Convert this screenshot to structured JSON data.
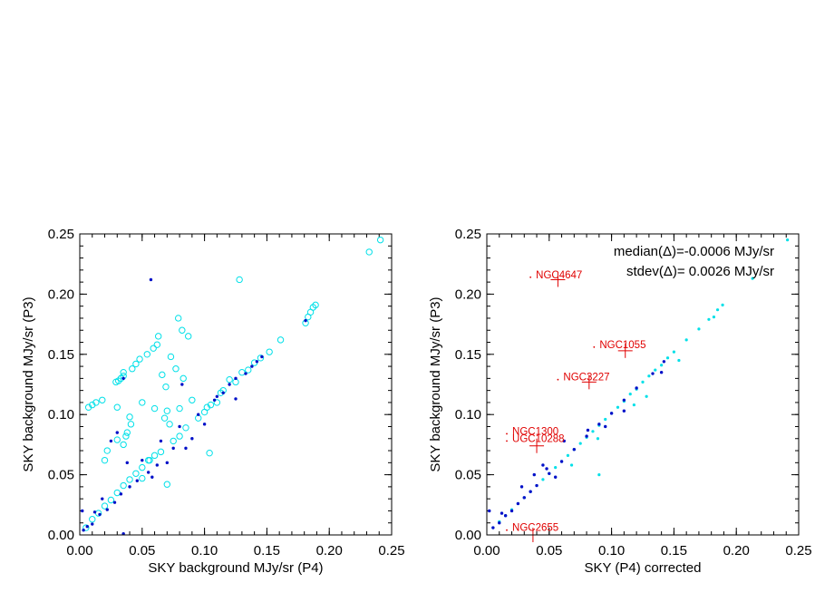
{
  "chart_data": [
    {
      "type": "scatter",
      "xlabel": "SKY background MJy/sr (P4)",
      "ylabel": "SKY background MJy/sr (P3)",
      "xlim": [
        0,
        0.25
      ],
      "ylim": [
        0,
        0.25
      ],
      "xticks": [
        "0.00",
        "0.05",
        "0.10",
        "0.15",
        "0.20",
        "0.25"
      ],
      "yticks": [
        "0.00",
        "0.05",
        "0.10",
        "0.15",
        "0.20",
        "0.25"
      ],
      "colors": {
        "open_circles": "#00e0e8",
        "dots": "#0010c8"
      },
      "series": [
        {
          "marker": "open-circle",
          "points": [
            [
              0.241,
              0.245
            ],
            [
              0.232,
              0.235
            ],
            [
              0.128,
              0.212
            ],
            [
              0.189,
              0.191
            ],
            [
              0.187,
              0.189
            ],
            [
              0.185,
              0.185
            ],
            [
              0.183,
              0.181
            ],
            [
              0.181,
              0.176
            ],
            [
              0.161,
              0.162
            ],
            [
              0.152,
              0.152
            ],
            [
              0.145,
              0.147
            ],
            [
              0.079,
              0.18
            ],
            [
              0.082,
              0.17
            ],
            [
              0.087,
              0.165
            ],
            [
              0.063,
              0.165
            ],
            [
              0.062,
              0.158
            ],
            [
              0.059,
              0.155
            ],
            [
              0.054,
              0.15
            ],
            [
              0.048,
              0.146
            ],
            [
              0.045,
              0.142
            ],
            [
              0.042,
              0.138
            ],
            [
              0.035,
              0.132
            ],
            [
              0.033,
              0.13
            ],
            [
              0.031,
              0.128
            ],
            [
              0.029,
              0.127
            ],
            [
              0.073,
              0.148
            ],
            [
              0.077,
              0.138
            ],
            [
              0.066,
              0.133
            ],
            [
              0.083,
              0.13
            ],
            [
              0.069,
              0.123
            ],
            [
              0.035,
              0.135
            ],
            [
              0.018,
              0.112
            ],
            [
              0.013,
              0.11
            ],
            [
              0.01,
              0.108
            ],
            [
              0.007,
              0.106
            ],
            [
              0.03,
              0.106
            ],
            [
              0.04,
              0.098
            ],
            [
              0.05,
              0.11
            ],
            [
              0.06,
              0.105
            ],
            [
              0.07,
              0.103
            ],
            [
              0.08,
              0.105
            ],
            [
              0.068,
              0.097
            ],
            [
              0.072,
              0.092
            ],
            [
              0.041,
              0.092
            ],
            [
              0.038,
              0.085
            ],
            [
              0.037,
              0.082
            ],
            [
              0.035,
              0.075
            ],
            [
              0.03,
              0.079
            ],
            [
              0.022,
              0.07
            ],
            [
              0.02,
              0.062
            ],
            [
              0.104,
              0.068
            ],
            [
              0.07,
              0.042
            ],
            [
              0.05,
              0.047
            ],
            [
              0.056,
              0.062
            ],
            [
              0.09,
              0.112
            ],
            [
              0.102,
              0.106
            ],
            [
              0.113,
              0.118
            ],
            [
              0.12,
              0.129
            ],
            [
              0.13,
              0.135
            ],
            [
              0.14,
              0.143
            ],
            [
              0.11,
              0.11
            ],
            [
              0.095,
              0.097
            ],
            [
              0.08,
              0.082
            ],
            [
              0.065,
              0.069
            ],
            [
              0.05,
              0.056
            ],
            [
              0.04,
              0.046
            ],
            [
              0.03,
              0.035
            ],
            [
              0.02,
              0.024
            ],
            [
              0.01,
              0.013
            ],
            [
              0.005,
              0.006
            ],
            [
              0.015,
              0.018
            ],
            [
              0.025,
              0.029
            ],
            [
              0.035,
              0.041
            ],
            [
              0.045,
              0.051
            ],
            [
              0.055,
              0.062
            ],
            [
              0.06,
              0.066
            ],
            [
              0.075,
              0.078
            ],
            [
              0.085,
              0.089
            ],
            [
              0.1,
              0.102
            ],
            [
              0.105,
              0.108
            ],
            [
              0.115,
              0.12
            ],
            [
              0.125,
              0.127
            ],
            [
              0.135,
              0.137
            ]
          ]
        },
        {
          "marker": "dot",
          "points": [
            [
              0.057,
              0.212
            ],
            [
              0.035,
              0.13
            ],
            [
              0.082,
              0.125
            ],
            [
              0.11,
              0.115
            ],
            [
              0.012,
              0.019
            ],
            [
              0.002,
              0.02
            ],
            [
              0.035,
              0.001
            ],
            [
              0.03,
              0.085
            ],
            [
              0.025,
              0.078
            ],
            [
              0.065,
              0.078
            ],
            [
              0.12,
              0.125
            ],
            [
              0.133,
              0.134
            ],
            [
              0.142,
              0.144
            ],
            [
              0.181,
              0.178
            ],
            [
              0.1,
              0.092
            ],
            [
              0.09,
              0.08
            ],
            [
              0.075,
              0.072
            ],
            [
              0.062,
              0.058
            ],
            [
              0.055,
              0.052
            ],
            [
              0.046,
              0.045
            ],
            [
              0.04,
              0.04
            ],
            [
              0.033,
              0.034
            ],
            [
              0.028,
              0.027
            ],
            [
              0.022,
              0.021
            ],
            [
              0.016,
              0.017
            ],
            [
              0.01,
              0.009
            ],
            [
              0.006,
              0.007
            ],
            [
              0.003,
              0.004
            ],
            [
              0.07,
              0.06
            ],
            [
              0.08,
              0.09
            ],
            [
              0.095,
              0.1
            ],
            [
              0.108,
              0.112
            ],
            [
              0.115,
              0.118
            ],
            [
              0.125,
              0.13
            ],
            [
              0.138,
              0.14
            ],
            [
              0.05,
              0.062
            ],
            [
              0.058,
              0.048
            ],
            [
              0.038,
              0.06
            ],
            [
              0.018,
              0.03
            ],
            [
              0.085,
              0.072
            ],
            [
              0.125,
              0.113
            ],
            [
              0.146,
              0.148
            ]
          ]
        }
      ]
    },
    {
      "type": "scatter",
      "xlabel": "SKY (P4) corrected",
      "ylabel": "SKY background MJy/sr (P3)",
      "xlim": [
        0,
        0.25
      ],
      "ylim": [
        0,
        0.25
      ],
      "xticks": [
        "0.00",
        "0.05",
        "0.10",
        "0.15",
        "0.20",
        "0.25"
      ],
      "yticks": [
        "0.00",
        "0.05",
        "0.10",
        "0.15",
        "0.20",
        "0.25"
      ],
      "annotations": [
        "median(Δ)=-0.0006 MJy/sr",
        "stdev(Δ)= 0.0026 MJy/sr"
      ],
      "colors": {
        "cyan_points": "#00e0e8",
        "dots": "#0010c8",
        "outliers": "#e00000"
      },
      "series": [
        {
          "marker": "small-cyan",
          "points": [
            [
              0.241,
              0.245
            ],
            [
              0.213,
              0.213
            ],
            [
              0.189,
              0.191
            ],
            [
              0.185,
              0.187
            ],
            [
              0.182,
              0.181
            ],
            [
              0.178,
              0.179
            ],
            [
              0.17,
              0.171
            ],
            [
              0.16,
              0.162
            ],
            [
              0.15,
              0.152
            ],
            [
              0.145,
              0.147
            ],
            [
              0.14,
              0.141
            ],
            [
              0.135,
              0.137
            ],
            [
              0.13,
              0.132
            ],
            [
              0.125,
              0.127
            ],
            [
              0.12,
              0.121
            ],
            [
              0.115,
              0.117
            ],
            [
              0.11,
              0.111
            ],
            [
              0.105,
              0.106
            ],
            [
              0.1,
              0.101
            ],
            [
              0.095,
              0.096
            ],
            [
              0.09,
              0.091
            ],
            [
              0.085,
              0.086
            ],
            [
              0.08,
              0.081
            ],
            [
              0.075,
              0.076
            ],
            [
              0.07,
              0.071
            ],
            [
              0.065,
              0.066
            ],
            [
              0.06,
              0.061
            ],
            [
              0.055,
              0.056
            ],
            [
              0.05,
              0.051
            ],
            [
              0.045,
              0.046
            ],
            [
              0.04,
              0.041
            ],
            [
              0.035,
              0.036
            ],
            [
              0.03,
              0.031
            ],
            [
              0.025,
              0.026
            ],
            [
              0.02,
              0.021
            ],
            [
              0.015,
              0.016
            ],
            [
              0.01,
              0.011
            ],
            [
              0.005,
              0.006
            ],
            [
              0.089,
              0.08
            ],
            [
              0.118,
              0.108
            ],
            [
              0.128,
              0.115
            ],
            [
              0.068,
              0.058
            ],
            [
              0.09,
              0.05
            ],
            [
              0.154,
              0.145
            ]
          ]
        },
        {
          "marker": "dot",
          "points": [
            [
              0.142,
              0.144
            ],
            [
              0.133,
              0.134
            ],
            [
              0.12,
              0.122
            ],
            [
              0.11,
              0.112
            ],
            [
              0.1,
              0.101
            ],
            [
              0.09,
              0.092
            ],
            [
              0.08,
              0.082
            ],
            [
              0.07,
              0.071
            ],
            [
              0.06,
              0.061
            ],
            [
              0.05,
              0.051
            ],
            [
              0.04,
              0.041
            ],
            [
              0.035,
              0.036
            ],
            [
              0.03,
              0.031
            ],
            [
              0.025,
              0.026
            ],
            [
              0.02,
              0.02
            ],
            [
              0.015,
              0.016
            ],
            [
              0.01,
              0.01
            ],
            [
              0.005,
              0.006
            ],
            [
              0.002,
              0.02
            ],
            [
              0.012,
              0.018
            ],
            [
              0.062,
              0.078
            ],
            [
              0.045,
              0.058
            ],
            [
              0.055,
              0.048
            ],
            [
              0.11,
              0.103
            ],
            [
              0.081,
              0.087
            ],
            [
              0.095,
              0.09
            ],
            [
              0.14,
              0.135
            ],
            [
              0.028,
              0.04
            ],
            [
              0.038,
              0.05
            ],
            [
              0.048,
              0.055
            ]
          ]
        },
        {
          "marker": "outlier",
          "points": [
            [
              0.035,
              0.214,
              "NGC4647"
            ],
            [
              0.086,
              0.156,
              "NGC1055"
            ],
            [
              0.057,
              0.129,
              "NGC3227"
            ],
            [
              0.016,
              0.084,
              "NGC1300"
            ],
            [
              0.016,
              0.078,
              "UGC10288"
            ],
            [
              0.016,
              0.004,
              "NGC2655"
            ]
          ]
        },
        {
          "marker": "plus",
          "points": [
            [
              0.057,
              0.212
            ],
            [
              0.111,
              0.153
            ],
            [
              0.082,
              0.127
            ],
            [
              0.04,
              0.074
            ],
            [
              0.037,
              0.0
            ]
          ]
        }
      ]
    }
  ]
}
